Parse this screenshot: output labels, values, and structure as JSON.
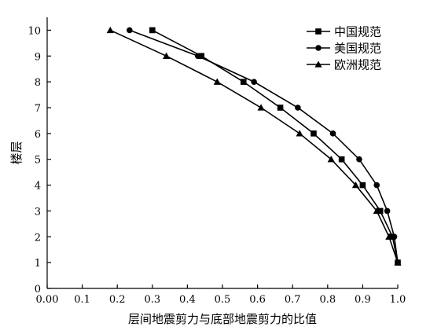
{
  "chart_data": {
    "type": "line",
    "title": "",
    "xlabel": "层间地震剪力与底部地震剪力的比值",
    "ylabel": "楼层",
    "xlim": [
      0,
      1.0
    ],
    "ylim": [
      0,
      10.5
    ],
    "xticks": [
      0.0,
      0.1,
      0.2,
      0.3,
      0.4,
      0.5,
      0.6,
      0.7,
      0.8,
      0.9,
      1.0
    ],
    "xtick_labels": [
      "0.00",
      "0.1",
      "0.2",
      "0.3",
      "0.4",
      "0.5",
      "0.6",
      "0.7",
      "0.8",
      "0.9",
      "1.0"
    ],
    "yticks": [
      0,
      1,
      2,
      3,
      4,
      5,
      6,
      7,
      8,
      9,
      10
    ],
    "ytick_labels": [
      "0",
      "1",
      "2",
      "3",
      "4",
      "5",
      "6",
      "7",
      "8",
      "9",
      "10"
    ],
    "grid": false,
    "legend_position": "top-right",
    "series": [
      {
        "name": "中国规范",
        "marker": "square",
        "x": [
          1.0,
          0.985,
          0.95,
          0.9,
          0.84,
          0.76,
          0.665,
          0.56,
          0.44,
          0.3
        ],
        "y": [
          1,
          2,
          3,
          4,
          5,
          6,
          7,
          8,
          9,
          10
        ]
      },
      {
        "name": "美国规范",
        "marker": "circle",
        "x": [
          1.0,
          0.99,
          0.97,
          0.94,
          0.89,
          0.815,
          0.715,
          0.59,
          0.43,
          0.235
        ],
        "y": [
          1,
          2,
          3,
          4,
          5,
          6,
          7,
          8,
          9,
          10
        ]
      },
      {
        "name": "欧洲规范",
        "marker": "triangle",
        "x": [
          1.0,
          0.975,
          0.94,
          0.88,
          0.81,
          0.72,
          0.61,
          0.485,
          0.34,
          0.18
        ],
        "y": [
          1,
          2,
          3,
          4,
          5,
          6,
          7,
          8,
          9,
          10
        ]
      }
    ]
  }
}
